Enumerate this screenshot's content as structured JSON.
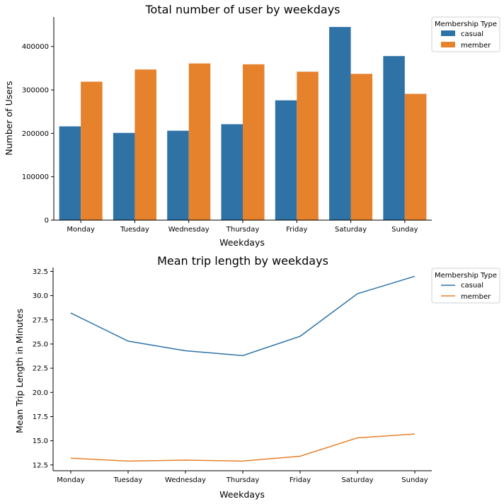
{
  "colors": {
    "casual": "#2f73a6",
    "member": "#e6812c"
  },
  "chart_data": [
    {
      "type": "bar",
      "title": "Total number of user by weekdays",
      "xlabel": "Weekdays",
      "ylabel": "Number of Users",
      "categories": [
        "Monday",
        "Tuesday",
        "Wednesday",
        "Thursday",
        "Friday",
        "Saturday",
        "Sunday"
      ],
      "series": [
        {
          "name": "casual",
          "values": [
            216000,
            201000,
            206000,
            221000,
            276000,
            445000,
            378000
          ]
        },
        {
          "name": "member",
          "values": [
            319000,
            347000,
            361000,
            359000,
            342000,
            337000,
            291000
          ]
        }
      ],
      "ylim": [
        0,
        468000
      ],
      "yticks": [
        0,
        100000,
        200000,
        300000,
        400000
      ],
      "ytick_labels": [
        "0",
        "100000",
        "200000",
        "300000",
        "400000"
      ],
      "legend": {
        "title": "Membership Type",
        "placement": "outside-top-right"
      },
      "grid": false
    },
    {
      "type": "line",
      "title": "Mean trip length by weekdays",
      "xlabel": "Weekdays",
      "ylabel": "Mean Trip Length in Minutes",
      "categories": [
        "Monday",
        "Tuesday",
        "Wednesday",
        "Thursday",
        "Friday",
        "Saturday",
        "Sunday"
      ],
      "series": [
        {
          "name": "casual",
          "values": [
            28.2,
            25.3,
            24.3,
            23.8,
            25.8,
            30.2,
            32.0
          ]
        },
        {
          "name": "member",
          "values": [
            13.2,
            12.9,
            13.0,
            12.9,
            13.4,
            15.3,
            15.7
          ]
        }
      ],
      "ylim": [
        11.9,
        32.9
      ],
      "yticks": [
        12.5,
        15.0,
        17.5,
        20.0,
        22.5,
        25.0,
        27.5,
        30.0,
        32.5
      ],
      "ytick_labels": [
        "12.5",
        "15.0",
        "17.5",
        "20.0",
        "22.5",
        "25.0",
        "27.5",
        "30.0",
        "32.5"
      ],
      "legend": {
        "title": "Membership Type",
        "placement": "outside-top-right"
      },
      "grid": false
    }
  ]
}
